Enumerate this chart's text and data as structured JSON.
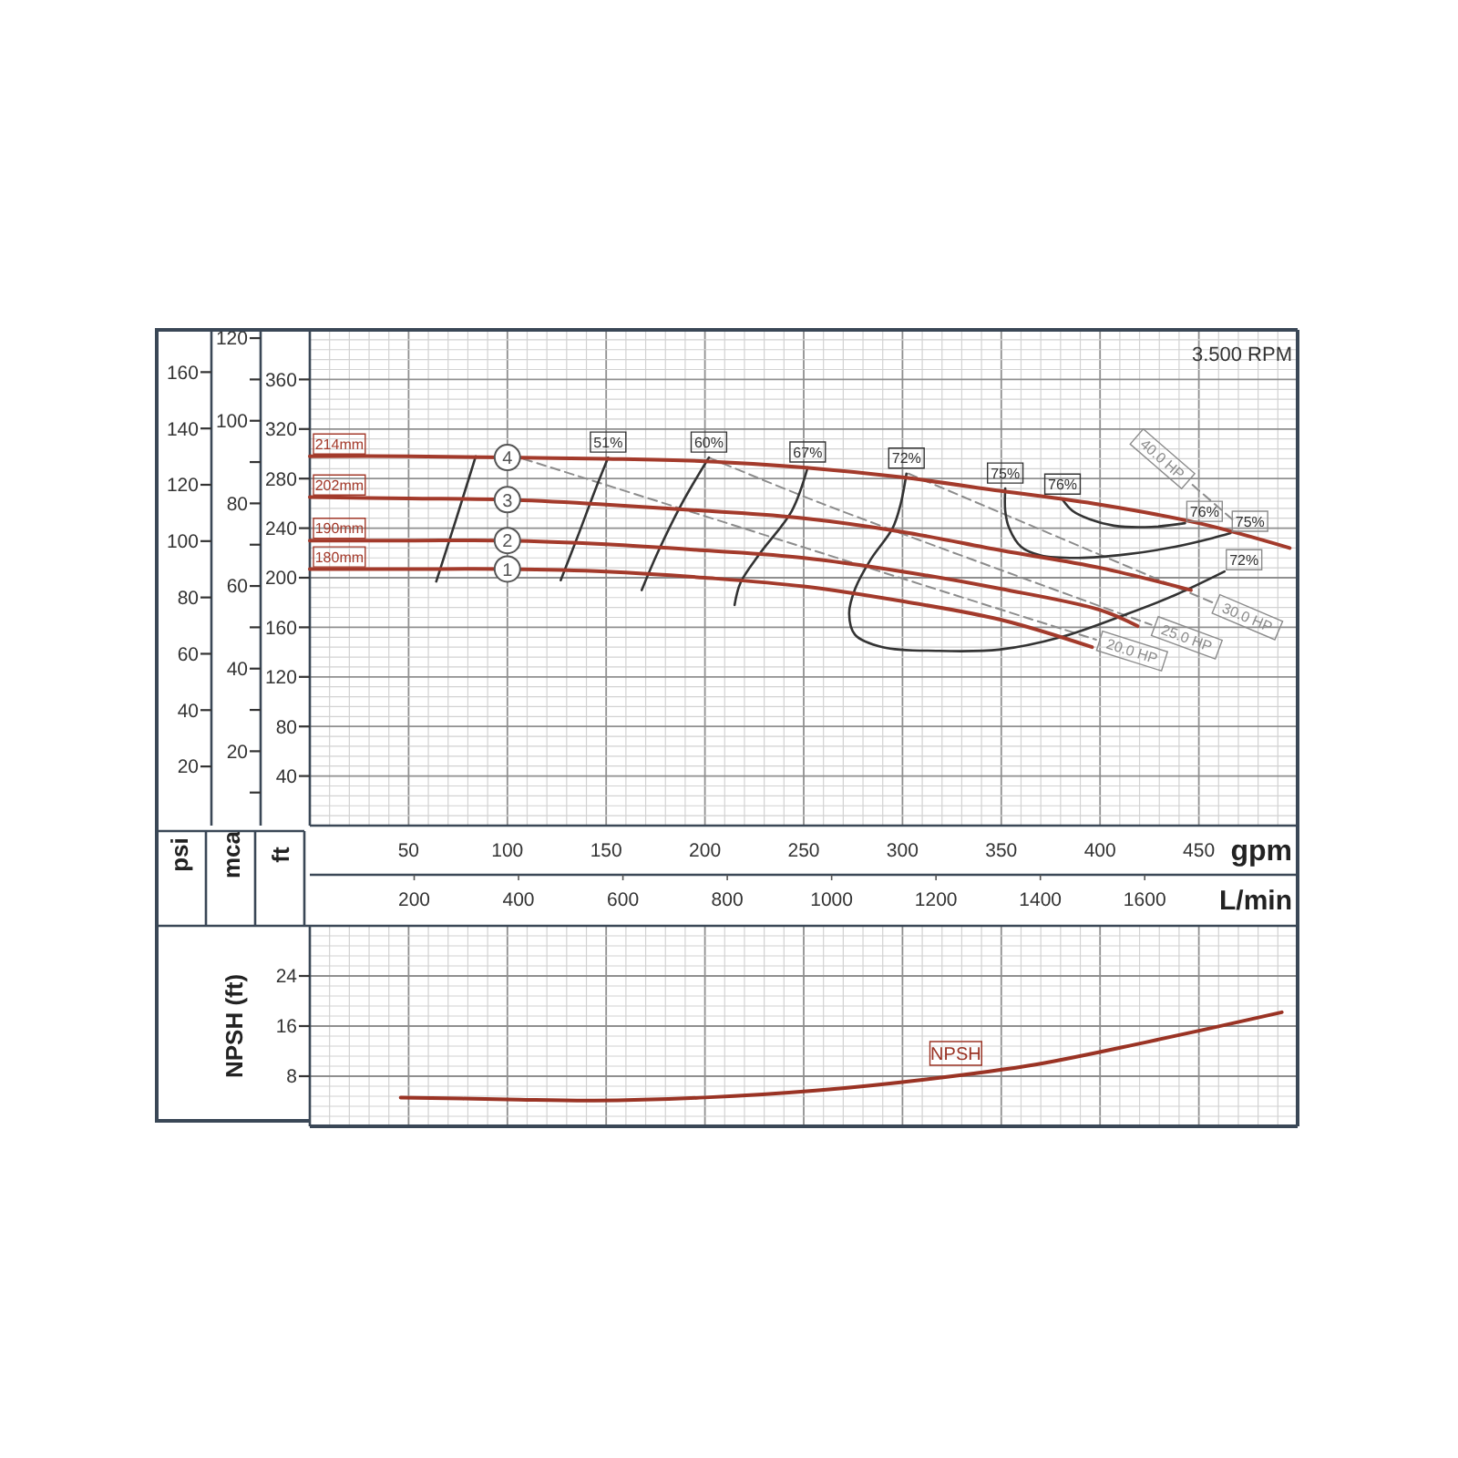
{
  "chart_data": [
    {
      "type": "line",
      "xlabel": "gpm",
      "x2label": "L/min",
      "ylabel": "ft",
      "y2label": "mca",
      "y3label": "psi",
      "xlim": [
        0,
        500
      ],
      "xticks": [
        50,
        100,
        150,
        200,
        250,
        300,
        350,
        400,
        450
      ],
      "x2lim": [
        0,
        1893
      ],
      "x2ticks": [
        200,
        400,
        600,
        800,
        1000,
        1200,
        1400,
        1600
      ],
      "ylim": [
        0,
        400
      ],
      "yticks": [
        40,
        80,
        120,
        160,
        200,
        240,
        280,
        320,
        360
      ],
      "y2lim": [
        2,
        122
      ],
      "y2ticks": [
        20,
        40,
        60,
        80,
        100,
        120
      ],
      "y3lim": [
        -1,
        175
      ],
      "y3ticks": [
        20,
        40,
        60,
        80,
        100,
        120,
        140,
        160
      ],
      "grid": true,
      "series": [
        {
          "name": "20.0 HP",
          "color": "#8c8c8c",
          "line_style": "dashed",
          "x": [
            108,
            259,
            398
          ],
          "values": [
            296,
            220,
            150
          ]
        },
        {
          "name": "25.0 HP",
          "color": "#8c8c8c",
          "line_style": "dashed",
          "x": [
            202,
            259,
            426
          ],
          "values": [
            297,
            260,
            162
          ]
        },
        {
          "name": "30.0 HP",
          "color": "#8c8c8c",
          "line_style": "dashed",
          "x": [
            303,
            457
          ],
          "values": [
            284,
            180
          ]
        },
        {
          "name": "40.0 HP",
          "color": "#8c8c8c",
          "line_style": "dashed",
          "x": [
            467,
            446
          ],
          "values": [
            247,
            276
          ]
        },
        {
          "color": "#333333",
          "x": [
            64,
            74,
            84
          ],
          "values": [
            197,
            247,
            298
          ]
        },
        {
          "name": "51%",
          "color": "#333333",
          "x": [
            127,
            136,
            144,
            151
          ],
          "values": [
            198,
            235,
            269,
            297
          ]
        },
        {
          "name": "60%",
          "color": "#333333",
          "x": [
            168,
            176,
            188,
            202
          ],
          "values": [
            190,
            220,
            259,
            297
          ]
        },
        {
          "name": "67%",
          "color": "#333333",
          "x": [
            215,
            218,
            228,
            244,
            252
          ],
          "values": [
            178,
            196,
            220,
            254,
            289
          ]
        },
        {
          "name": "72%",
          "color": "#333333",
          "x": [
            302,
            299,
            295,
            284,
            276,
            273,
            276,
            290,
            318,
            349,
            380,
            414,
            438,
            463
          ],
          "values": [
            284,
            259,
            240,
            215,
            191,
            171,
            154,
            144,
            141,
            142,
            152,
            171,
            186,
            205
          ]
        },
        {
          "name": "75%",
          "color": "#333333",
          "x": [
            352,
            352,
            354,
            360,
            370,
            389,
            414,
            438,
            457,
            466
          ],
          "values": [
            272,
            254,
            240,
            225,
            218,
            216,
            219,
            225,
            232,
            236
          ]
        },
        {
          "name": "76%",
          "color": "#333333",
          "x": [
            381,
            386,
            395,
            407,
            426,
            443
          ],
          "values": [
            263,
            254,
            247,
            242,
            241,
            244
          ]
        },
        {
          "name": "214mm",
          "color": "#a33a2b",
          "x": [
            0,
            50,
            100,
            150,
            200,
            250,
            300,
            350,
            400,
            450,
            496
          ],
          "values": [
            298,
            298,
            297,
            296,
            294,
            289,
            281,
            270,
            259,
            244,
            224
          ]
        },
        {
          "name": "202mm",
          "color": "#a33a2b",
          "x": [
            0,
            50,
            100,
            150,
            200,
            250,
            300,
            350,
            400,
            446
          ],
          "values": [
            265,
            264,
            263,
            259,
            254,
            248,
            237,
            222,
            208,
            190
          ]
        },
        {
          "name": "190mm",
          "color": "#a33a2b",
          "x": [
            0,
            50,
            100,
            150,
            200,
            250,
            300,
            350,
            400,
            419
          ],
          "values": [
            230,
            230,
            230,
            227,
            222,
            216,
            205,
            191,
            174,
            161
          ]
        },
        {
          "name": "180mm",
          "color": "#a33a2b",
          "x": [
            0,
            50,
            100,
            150,
            200,
            250,
            300,
            350,
            396
          ],
          "values": [
            207,
            207,
            207,
            205,
            200,
            193,
            181,
            166,
            144
          ]
        },
        {
          "type": "scatter",
          "name": "1",
          "color": "#555555",
          "marker": "circle",
          "x": [
            100
          ],
          "values": [
            207
          ]
        },
        {
          "type": "scatter",
          "name": "2",
          "color": "#555555",
          "marker": "circle",
          "x": [
            100
          ],
          "values": [
            230
          ]
        },
        {
          "type": "scatter",
          "name": "3",
          "color": "#555555",
          "marker": "circle",
          "x": [
            100
          ],
          "values": [
            263
          ]
        },
        {
          "type": "scatter",
          "name": "4",
          "color": "#555555",
          "marker": "circle",
          "x": [
            100
          ],
          "values": [
            297
          ]
        }
      ],
      "annotations": [
        "3.500 RPM",
        {
          "text": "76%",
          "x": 443,
          "y": 244
        },
        {
          "text": "75%",
          "x": 466,
          "y": 236
        },
        {
          "text": "72%",
          "x": 463,
          "y": 205
        }
      ]
    },
    {
      "type": "line",
      "ylabel": "NPSH (ft)",
      "xlim": [
        0,
        500
      ],
      "xticks": [
        50,
        100,
        150,
        200,
        250,
        300,
        350,
        400,
        450
      ],
      "ylim": [
        0,
        32
      ],
      "yticks": [
        8,
        16,
        24
      ],
      "tick_labels": "y",
      "grid": true,
      "series": [
        {
          "name": "NPSH",
          "color": "#9a3324",
          "x": [
            46,
            100,
            144,
            200,
            256,
            312,
            368,
            423,
            492
          ],
          "values": [
            4.6,
            4.3,
            4.1,
            4.6,
            5.7,
            7.5,
            9.9,
            13.4,
            18.2
          ]
        }
      ]
    }
  ]
}
